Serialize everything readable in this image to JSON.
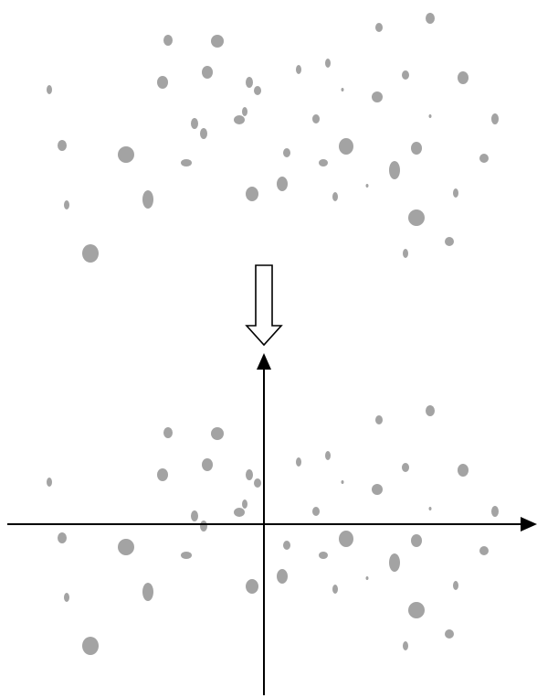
{
  "colors": {
    "background": "#ffffff",
    "dot": "#a3a3a3",
    "axis": "#000000",
    "arrow_fill": "#ffffff",
    "arrow_stroke": "#000000"
  },
  "top_panel": {
    "dots": [
      {
        "id": 1,
        "size": "small"
      },
      {
        "id": 2,
        "size": "small"
      },
      {
        "id": 3,
        "size": "medium"
      },
      {
        "id": 4,
        "size": "small"
      },
      {
        "id": 5,
        "size": "medium"
      },
      {
        "id": 6,
        "size": "small"
      },
      {
        "id": 7,
        "size": "tiny"
      },
      {
        "id": 8,
        "size": "large"
      }
    ]
  },
  "bottom_panel": {
    "has_coordinate_axes": true,
    "x_axis": {
      "arrow": "right"
    },
    "y_axis": {
      "arrow": "up"
    }
  },
  "transition_arrow": {
    "direction": "down",
    "style": "hollow"
  }
}
